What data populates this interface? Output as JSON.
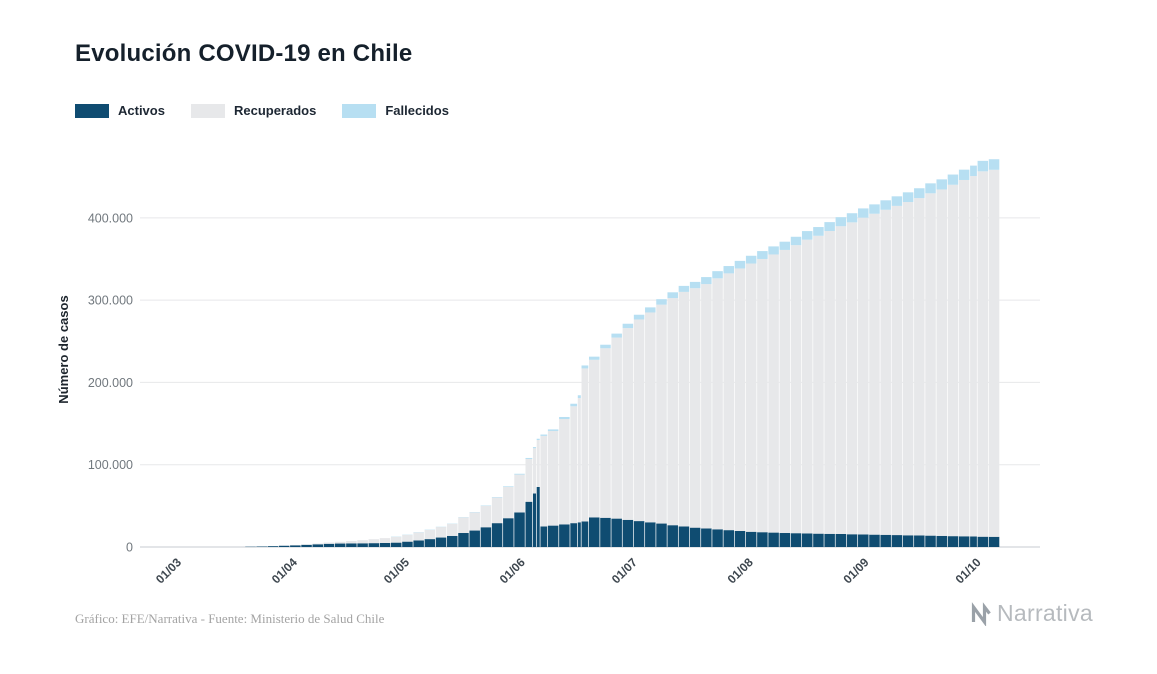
{
  "page": {
    "title": "Evolución COVID-19 en Chile"
  },
  "legend": [
    {
      "label": "Activos",
      "color": "#0f4c71"
    },
    {
      "label": "Recuperados",
      "color": "#e7e8ea"
    },
    {
      "label": "Fallecidos",
      "color": "#b7dff2"
    }
  ],
  "footer": {
    "credit": "Gráfico: EFE/Narrativa - Fuente: Ministerio de Salud Chile",
    "brand": "Narrativa"
  },
  "chart_data": {
    "type": "bar",
    "stacked": true,
    "title": "Evolución COVID-19 en Chile",
    "xlabel": "",
    "ylabel": "Número de casos",
    "ylim": [
      0,
      480000
    ],
    "grid": true,
    "legend_position": "top-left",
    "yticks": [
      0,
      100000,
      200000,
      300000,
      400000
    ],
    "ytick_labels": [
      "0",
      "100.000",
      "200.000",
      "300.000",
      "400.000"
    ],
    "xtick_days": [
      0,
      31,
      61,
      92,
      122,
      153,
      184,
      214
    ],
    "xtick_labels": [
      "01/03",
      "01/04",
      "01/05",
      "01/06",
      "01/07",
      "01/08",
      "01/09",
      "01/10"
    ],
    "dates": [
      "01/03",
      "04/03",
      "07/03",
      "10/03",
      "13/03",
      "16/03",
      "19/03",
      "22/03",
      "25/03",
      "28/03",
      "31/03",
      "03/04",
      "06/04",
      "09/04",
      "12/04",
      "15/04",
      "18/04",
      "21/04",
      "24/04",
      "27/04",
      "30/04",
      "03/05",
      "06/05",
      "09/05",
      "12/05",
      "15/05",
      "18/05",
      "21/05",
      "24/05",
      "27/05",
      "30/05",
      "02/06",
      "04/06",
      "05/06",
      "06/06",
      "08/06",
      "11/06",
      "14/06",
      "16/06",
      "17/06",
      "19/06",
      "22/06",
      "25/06",
      "28/06",
      "01/07",
      "04/07",
      "07/07",
      "10/07",
      "13/07",
      "16/07",
      "19/07",
      "22/07",
      "25/07",
      "28/07",
      "31/07",
      "03/08",
      "06/08",
      "09/08",
      "12/08",
      "15/08",
      "18/08",
      "21/08",
      "24/08",
      "27/08",
      "30/08",
      "02/09",
      "05/09",
      "08/09",
      "11/09",
      "14/09",
      "17/09",
      "20/09",
      "23/09",
      "26/09",
      "29/09",
      "01/10",
      "04/10"
    ],
    "days": [
      0,
      3,
      6,
      9,
      12,
      15,
      18,
      21,
      24,
      27,
      30,
      33,
      36,
      39,
      42,
      45,
      48,
      51,
      54,
      57,
      60,
      63,
      66,
      69,
      72,
      75,
      78,
      81,
      84,
      87,
      90,
      93,
      95,
      96,
      97,
      99,
      102,
      105,
      107,
      108,
      110,
      113,
      116,
      119,
      122,
      125,
      128,
      131,
      134,
      137,
      140,
      143,
      146,
      149,
      152,
      155,
      158,
      161,
      164,
      167,
      170,
      173,
      176,
      179,
      182,
      185,
      188,
      191,
      194,
      197,
      200,
      203,
      206,
      209,
      212,
      214,
      217
    ],
    "series": [
      {
        "name": "Activos",
        "color": "#0f4c71",
        "values": [
          1,
          4,
          12,
          25,
          55,
          150,
          330,
          600,
          1000,
          1500,
          2000,
          2700,
          3300,
          3900,
          4200,
          4400,
          4500,
          4700,
          4900,
          5300,
          6500,
          8000,
          9600,
          11500,
          13500,
          17000,
          20000,
          24000,
          29000,
          35000,
          42000,
          55000,
          65000,
          73000,
          25000,
          26000,
          27500,
          29000,
          30000,
          31000,
          36000,
          35500,
          34500,
          33000,
          31500,
          30000,
          28500,
          26500,
          25000,
          23500,
          22500,
          21500,
          20500,
          19500,
          18500,
          18000,
          17500,
          17000,
          16800,
          16500,
          16200,
          16000,
          15800,
          15500,
          15200,
          15000,
          14800,
          14500,
          14200,
          14000,
          13800,
          13500,
          13200,
          13000,
          12800,
          12500,
          12400
        ]
      },
      {
        "name": "Recuperados",
        "color": "#e7e8ea",
        "values": [
          0,
          0,
          0,
          0,
          2,
          5,
          10,
          30,
          50,
          100,
          250,
          500,
          900,
          1500,
          2100,
          2900,
          3800,
          4800,
          5900,
          7100,
          8200,
          9700,
          11200,
          12800,
          14700,
          19000,
          22000,
          26000,
          31000,
          38000,
          46000,
          52000,
          55000,
          57000,
          110000,
          115000,
          128000,
          142000,
          151000,
          186000,
          191500,
          206000,
          220000,
          233000,
          245000,
          255000,
          266000,
          276000,
          285000,
          291000,
          297000,
          305000,
          312000,
          319000,
          326000,
          332000,
          338000,
          344000,
          350000,
          357000,
          362000,
          368000,
          374000,
          379000,
          385000,
          390000,
          395000,
          400000,
          405000,
          410000,
          416000,
          421000,
          427000,
          433000,
          438000,
          444000,
          446000
        ]
      },
      {
        "name": "Fallecidos",
        "color": "#b7dff2",
        "values": [
          0,
          0,
          0,
          0,
          0,
          0,
          1,
          2,
          4,
          8,
          12,
          22,
          37,
          57,
          74,
          92,
          116,
          139,
          168,
          189,
          218,
          247,
          270,
          294,
          323,
          368,
          450,
          544,
          650,
          800,
          1000,
          1200,
          1450,
          1550,
          1650,
          1900,
          2500,
          3100,
          3400,
          3600,
          3800,
          4300,
          4800,
          5300,
          5750,
          6200,
          6650,
          7000,
          7300,
          7650,
          8500,
          8700,
          8900,
          9200,
          9400,
          9600,
          9800,
          10000,
          10200,
          10400,
          10600,
          10800,
          11000,
          11100,
          11250,
          11350,
          11500,
          11650,
          11800,
          11950,
          12100,
          12250,
          12400,
          12550,
          12650,
          12750,
          12800
        ]
      }
    ]
  }
}
